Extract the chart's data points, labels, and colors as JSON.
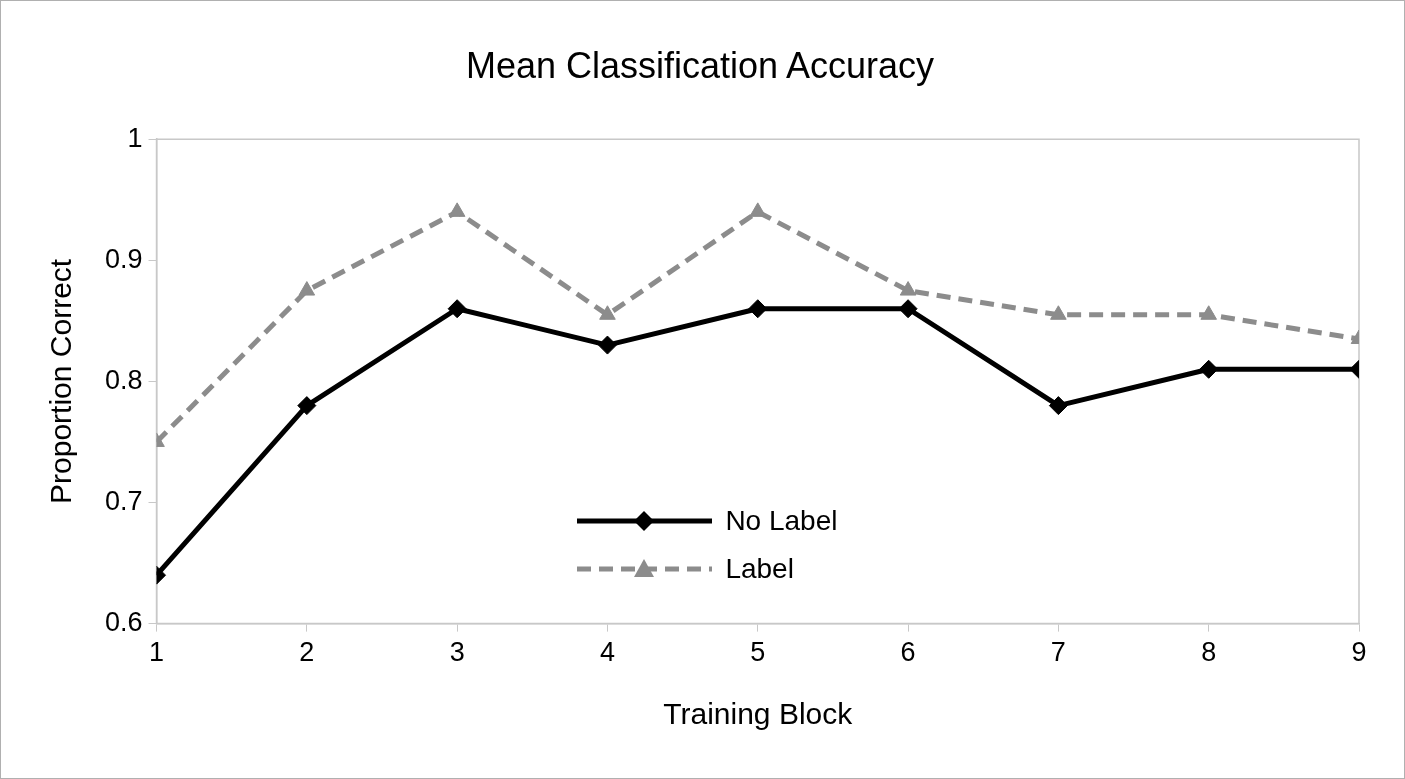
{
  "chart_data": {
    "type": "line",
    "title": "Mean Classification Accuracy",
    "xlabel": "Training Block",
    "ylabel": "Proportion Correct",
    "x": [
      1,
      2,
      3,
      4,
      5,
      6,
      7,
      8,
      9
    ],
    "series": [
      {
        "name": "No Label",
        "color": "#000000",
        "marker": "diamond",
        "line_style": "solid",
        "values": [
          0.64,
          0.78,
          0.86,
          0.83,
          0.86,
          0.86,
          0.78,
          0.81,
          0.81
        ]
      },
      {
        "name": "Label",
        "color": "#8c8c8c",
        "marker": "triangle",
        "line_style": "dashed",
        "values": [
          0.75,
          0.875,
          0.94,
          0.855,
          0.94,
          0.875,
          0.855,
          0.855,
          0.835
        ]
      }
    ],
    "xlim": [
      1,
      9
    ],
    "xticks": [
      1,
      2,
      3,
      4,
      5,
      6,
      7,
      8,
      9
    ],
    "ylim": [
      0.6,
      1
    ],
    "yticks": [
      0.6,
      0.7,
      0.8,
      0.9,
      1
    ],
    "grid": false,
    "legend": "bottom"
  }
}
